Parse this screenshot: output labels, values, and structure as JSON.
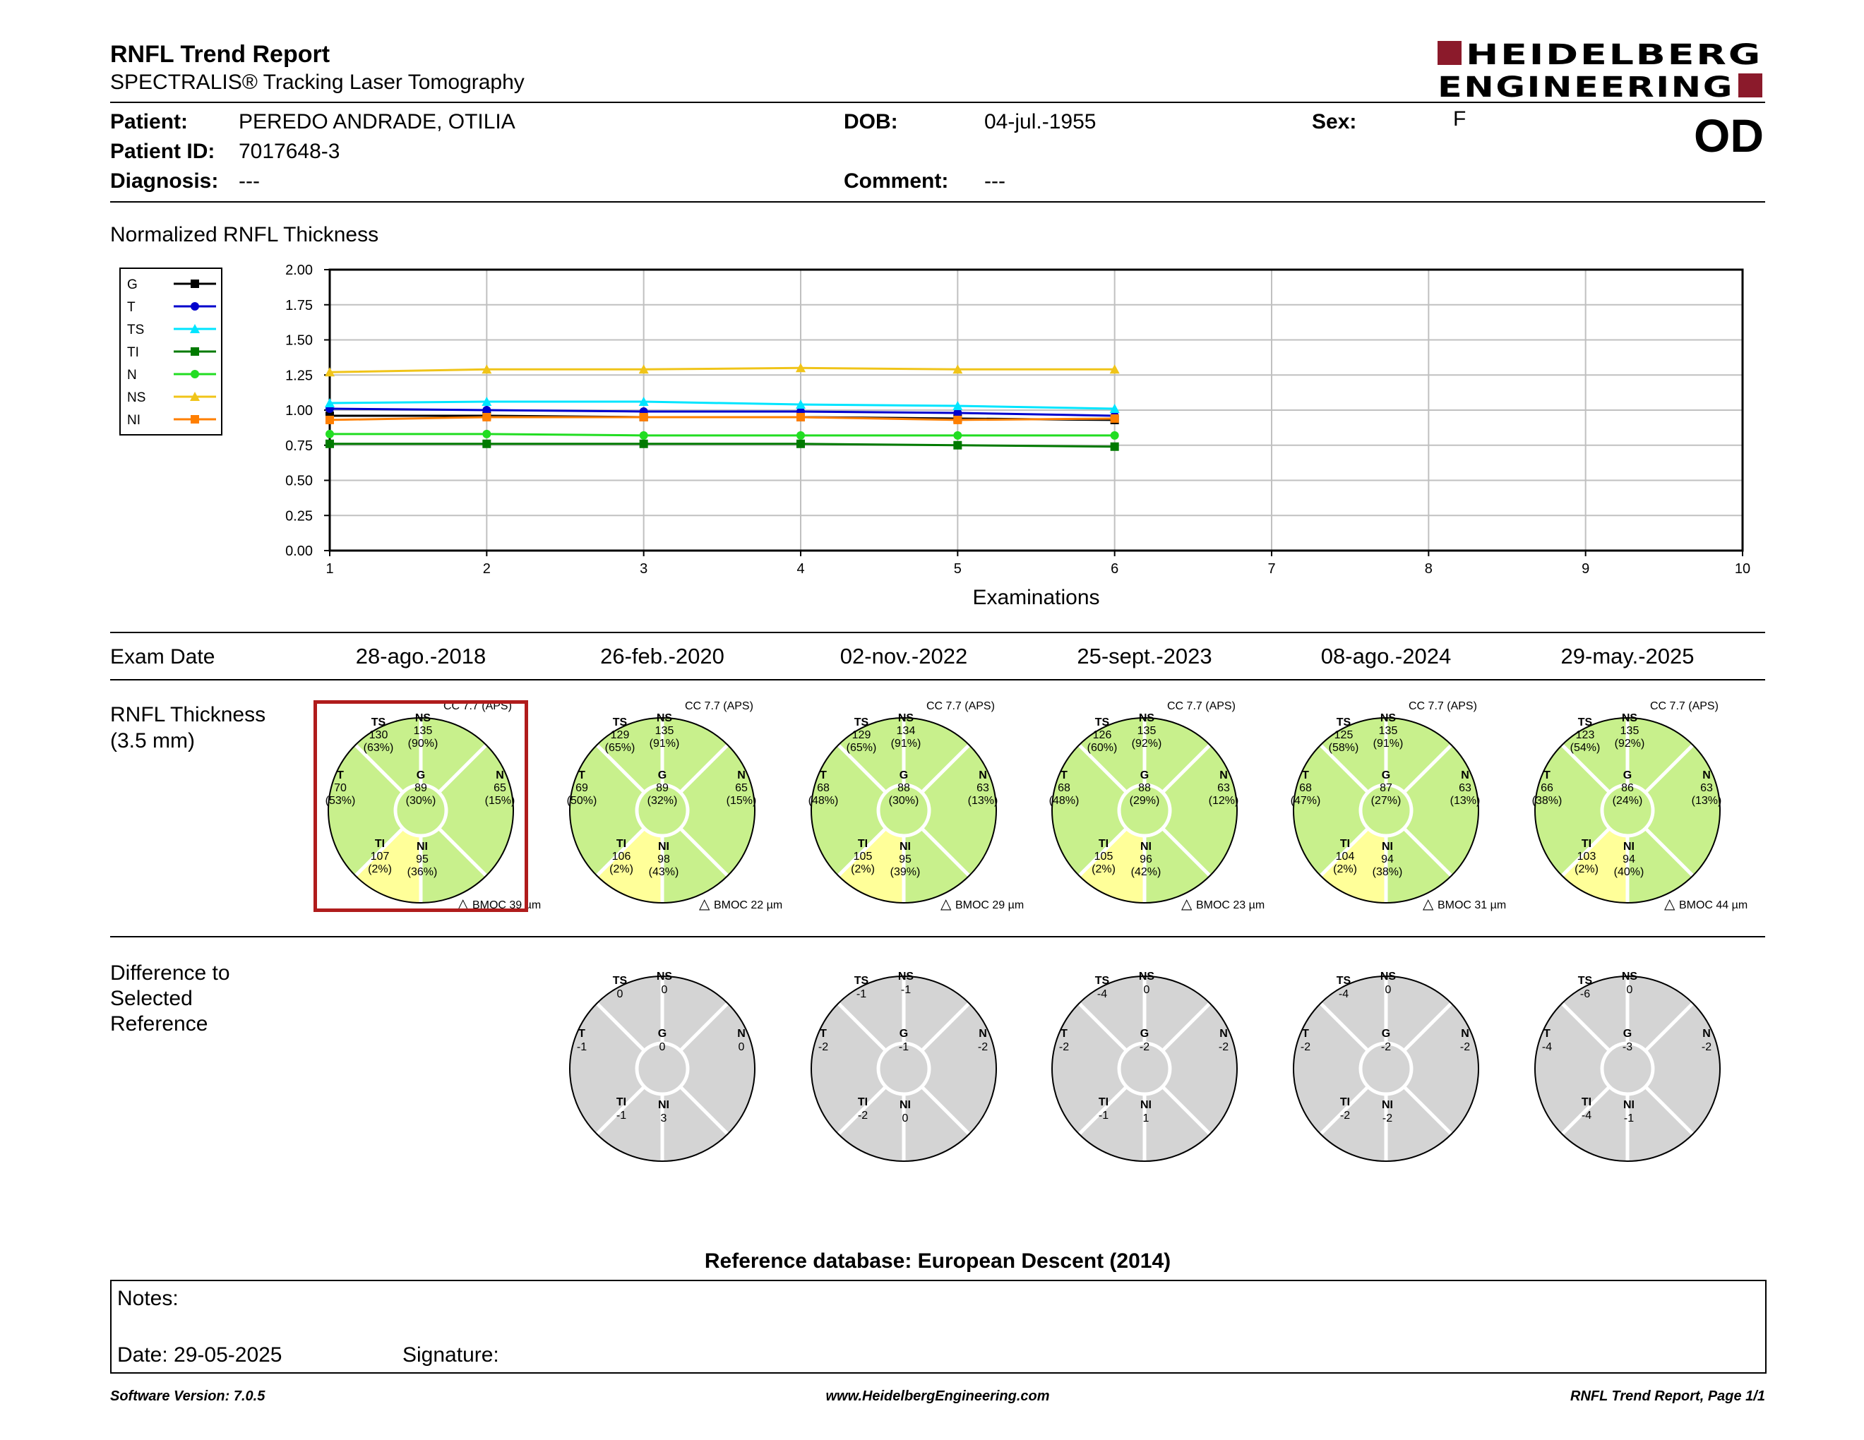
{
  "header": {
    "title": "RNFL Trend Report",
    "subtitle": "SPECTRALIS® Tracking Laser Tomography",
    "logo_line1": "HEIDELBERG",
    "logo_line2": "ENGINEERING",
    "eye": "OD",
    "brand_color": "#8b1a2b"
  },
  "patient": {
    "patient_label": "Patient:",
    "patient_value": "PEREDO ANDRADE, OTILIA",
    "id_label": "Patient ID:",
    "id_value": "7017648-3",
    "diagnosis_label": "Diagnosis:",
    "diagnosis_value": "---",
    "dob_label": "DOB:",
    "dob_value": "04-jul.-1955",
    "comment_label": "Comment:",
    "comment_value": "---",
    "sex_label": "Sex:",
    "sex_value": "F"
  },
  "chart_title": "Normalized RNFL Thickness",
  "chart_data": {
    "type": "line",
    "title": "Normalized RNFL Thickness",
    "xlabel": "Examinations",
    "ylabel": "",
    "xlim": [
      1,
      10
    ],
    "ylim": [
      0,
      2
    ],
    "x_ticks": [
      "1",
      "2",
      "3",
      "4",
      "5",
      "6",
      "7",
      "8",
      "9",
      "10"
    ],
    "y_ticks": [
      "0.00",
      "0.25",
      "0.50",
      "0.75",
      "1.00",
      "1.25",
      "1.50",
      "1.75",
      "2.00"
    ],
    "grid": true,
    "legend_position": "left",
    "x": [
      1,
      2,
      3,
      4,
      5,
      6
    ],
    "series": [
      {
        "name": "G",
        "color": "#000000",
        "marker": "square",
        "values": [
          0.96,
          0.96,
          0.95,
          0.95,
          0.94,
          0.93
        ]
      },
      {
        "name": "T",
        "color": "#0000cc",
        "marker": "circle",
        "values": [
          1.01,
          1.0,
          0.99,
          0.99,
          0.98,
          0.96
        ]
      },
      {
        "name": "TS",
        "color": "#00e5ff",
        "marker": "triangle",
        "values": [
          1.05,
          1.06,
          1.06,
          1.04,
          1.03,
          1.01
        ]
      },
      {
        "name": "TI",
        "color": "#007a00",
        "marker": "square",
        "values": [
          0.76,
          0.76,
          0.76,
          0.76,
          0.75,
          0.74
        ]
      },
      {
        "name": "N",
        "color": "#22dd22",
        "marker": "circle",
        "values": [
          0.83,
          0.83,
          0.82,
          0.82,
          0.82,
          0.82
        ]
      },
      {
        "name": "NS",
        "color": "#f0c419",
        "marker": "triangle",
        "values": [
          1.27,
          1.29,
          1.29,
          1.3,
          1.29,
          1.29
        ]
      },
      {
        "name": "NI",
        "color": "#ff7f00",
        "marker": "square",
        "values": [
          0.93,
          0.95,
          0.95,
          0.95,
          0.93,
          0.94
        ]
      }
    ]
  },
  "exam_date_label": "Exam Date",
  "exam_dates": [
    "28-ago.-2018",
    "26-feb.-2020",
    "02-nov.-2022",
    "25-sept.-2023",
    "08-ago.-2024",
    "29-may.-2025"
  ],
  "thickness_label_line1": "RNFL Thickness",
  "thickness_label_line2": "(3.5 mm)",
  "difference_label_line1": "Difference to",
  "difference_label_line2": "Selected",
  "difference_label_line3": "Reference",
  "colors": {
    "normal_green": "#c8f08c",
    "borderline_yellow": "#ffff99",
    "difference_gray": "#d4d4d4",
    "selected_border": "#b01c1c"
  },
  "rnfl_circles": [
    {
      "cc": "CC 7.7 (APS)",
      "bmo": "BMOC 39 µm",
      "selected": true,
      "TS": {
        "v": "130",
        "p": "(63%)"
      },
      "NS": {
        "v": "135",
        "p": "(90%)"
      },
      "T": {
        "v": "70",
        "p": "(53%)"
      },
      "G": {
        "v": "89",
        "p": "(30%)"
      },
      "N": {
        "v": "65",
        "p": "(15%)"
      },
      "TI": {
        "v": "107",
        "p": "(2%)"
      },
      "NI": {
        "v": "95",
        "p": "(36%)"
      }
    },
    {
      "cc": "CC 7.7 (APS)",
      "bmo": "BMOC 22 µm",
      "selected": false,
      "TS": {
        "v": "129",
        "p": "(65%)"
      },
      "NS": {
        "v": "135",
        "p": "(91%)"
      },
      "T": {
        "v": "69",
        "p": "(50%)"
      },
      "G": {
        "v": "89",
        "p": "(32%)"
      },
      "N": {
        "v": "65",
        "p": "(15%)"
      },
      "TI": {
        "v": "106",
        "p": "(2%)"
      },
      "NI": {
        "v": "98",
        "p": "(43%)"
      }
    },
    {
      "cc": "CC 7.7 (APS)",
      "bmo": "BMOC 29 µm",
      "selected": false,
      "TS": {
        "v": "129",
        "p": "(65%)"
      },
      "NS": {
        "v": "134",
        "p": "(91%)"
      },
      "T": {
        "v": "68",
        "p": "(48%)"
      },
      "G": {
        "v": "88",
        "p": "(30%)"
      },
      "N": {
        "v": "63",
        "p": "(13%)"
      },
      "TI": {
        "v": "105",
        "p": "(2%)"
      },
      "NI": {
        "v": "95",
        "p": "(39%)"
      }
    },
    {
      "cc": "CC 7.7 (APS)",
      "bmo": "BMOC 23 µm",
      "selected": false,
      "TS": {
        "v": "126",
        "p": "(60%)"
      },
      "NS": {
        "v": "135",
        "p": "(92%)"
      },
      "T": {
        "v": "68",
        "p": "(48%)"
      },
      "G": {
        "v": "88",
        "p": "(29%)"
      },
      "N": {
        "v": "63",
        "p": "(12%)"
      },
      "TI": {
        "v": "105",
        "p": "(2%)"
      },
      "NI": {
        "v": "96",
        "p": "(42%)"
      }
    },
    {
      "cc": "CC 7.7 (APS)",
      "bmo": "BMOC 31 µm",
      "selected": false,
      "TS": {
        "v": "125",
        "p": "(58%)"
      },
      "NS": {
        "v": "135",
        "p": "(91%)"
      },
      "T": {
        "v": "68",
        "p": "(47%)"
      },
      "G": {
        "v": "87",
        "p": "(27%)"
      },
      "N": {
        "v": "63",
        "p": "(13%)"
      },
      "TI": {
        "v": "104",
        "p": "(2%)"
      },
      "NI": {
        "v": "94",
        "p": "(38%)"
      }
    },
    {
      "cc": "CC 7.7 (APS)",
      "bmo": "BMOC 44 µm",
      "selected": false,
      "TS": {
        "v": "123",
        "p": "(54%)"
      },
      "NS": {
        "v": "135",
        "p": "(92%)"
      },
      "T": {
        "v": "66",
        "p": "(38%)"
      },
      "G": {
        "v": "86",
        "p": "(24%)"
      },
      "N": {
        "v": "63",
        "p": "(13%)"
      },
      "TI": {
        "v": "103",
        "p": "(2%)"
      },
      "NI": {
        "v": "94",
        "p": "(40%)"
      }
    }
  ],
  "difference_circles": [
    {
      "TS": "0",
      "NS": "0",
      "T": "-1",
      "G": "0",
      "N": "0",
      "TI": "-1",
      "NI": "3"
    },
    {
      "TS": "-1",
      "NS": "-1",
      "T": "-2",
      "G": "-1",
      "N": "-2",
      "TI": "-2",
      "NI": "0"
    },
    {
      "TS": "-4",
      "NS": "0",
      "T": "-2",
      "G": "-2",
      "N": "-2",
      "TI": "-1",
      "NI": "1"
    },
    {
      "TS": "-4",
      "NS": "0",
      "T": "-2",
      "G": "-2",
      "N": "-2",
      "TI": "-2",
      "NI": "-2"
    },
    {
      "TS": "-6",
      "NS": "0",
      "T": "-4",
      "G": "-3",
      "N": "-2",
      "TI": "-4",
      "NI": "-1"
    }
  ],
  "reference_db": "Reference database: European Descent (2014)",
  "notes": {
    "notes_label": "Notes:",
    "date_label": "Date: 29-05-2025",
    "signature_label": "Signature:"
  },
  "footer": {
    "software": "Software Version: 7.0.5",
    "website": "www.HeidelbergEngineering.com",
    "page": "RNFL Trend Report, Page 1/1"
  }
}
